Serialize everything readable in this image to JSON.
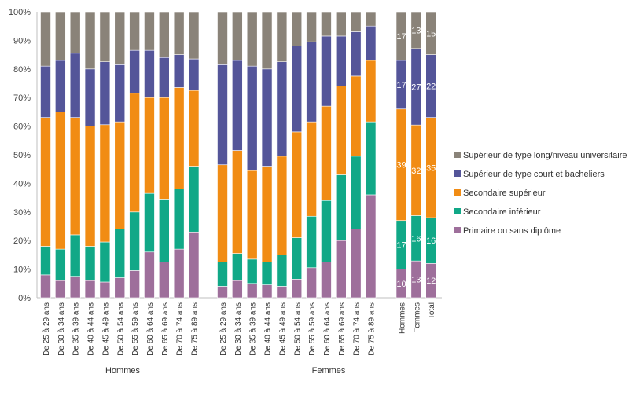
{
  "chart_data": {
    "type": "bar",
    "stacked": true,
    "percent_stacked": true,
    "ylim": [
      0,
      100
    ],
    "y_ticks": [
      "0%",
      "10%",
      "20%",
      "30%",
      "40%",
      "50%",
      "60%",
      "70%",
      "80%",
      "90%",
      "100%"
    ],
    "grid": false,
    "legend_position": "right",
    "series": [
      {
        "name": "Primaire ou sans diplôme",
        "color": "#9E6F9B"
      },
      {
        "name": "Secondaire inférieur",
        "color": "#11A887"
      },
      {
        "name": "Secondaire supérieur",
        "color": "#F18C14"
      },
      {
        "name": "Supérieur de type court et bacheliers",
        "color": "#545599"
      },
      {
        "name": "Supérieur de type long/niveau universitaire",
        "color": "#8A8379"
      }
    ],
    "legend_order": [
      4,
      3,
      2,
      1,
      0
    ],
    "groups": [
      {
        "label": "Hommes",
        "categories": [
          "De 25 à 29 ans",
          "De 30 à 34 ans",
          "De 35 à 39 ans",
          "De 40 à 44 ans",
          "De 45 à 49 ans",
          "De 50 à 54 ans",
          "De 55 à 59 ans",
          "De 60 à 64 ans",
          "De 65 à 69 ans",
          "De 70 à 74 ans",
          "De 75 à 89 ans"
        ],
        "values": [
          [
            8,
            10,
            45,
            18,
            19
          ],
          [
            6,
            11,
            48,
            18,
            17
          ],
          [
            7.5,
            14.5,
            41,
            22.5,
            14.5
          ],
          [
            6,
            12,
            42,
            20,
            20
          ],
          [
            5.5,
            14,
            41,
            22,
            17.5
          ],
          [
            7,
            17,
            37.5,
            20,
            18.5
          ],
          [
            9.5,
            20.5,
            41.5,
            15,
            13.5
          ],
          [
            16,
            20.5,
            33.5,
            16.5,
            13.5
          ],
          [
            12.5,
            22,
            35.5,
            14,
            16
          ],
          [
            17,
            21,
            35.5,
            11.5,
            15
          ],
          [
            23,
            23,
            26.5,
            11,
            16.5
          ]
        ]
      },
      {
        "label": "Femmes",
        "categories": [
          "De 25 à 29 ans",
          "De 30 à 34 ans",
          "De 35 à 39 ans",
          "De 40 à 44 ans",
          "De 45 à 49 ans",
          "De 50 à 54 ans",
          "De 55 à 59 ans",
          "De 60 à 64 ans",
          "De 65 à 69 ans",
          "De 70 à 74 ans",
          "De 75 à 89 ans"
        ],
        "values": [
          [
            4,
            8.5,
            34,
            35,
            18.5
          ],
          [
            6,
            9.5,
            36,
            31.5,
            17
          ],
          [
            5,
            8.5,
            31,
            36.5,
            19
          ],
          [
            4.5,
            8,
            33.5,
            34,
            20
          ],
          [
            4,
            11,
            34.5,
            33,
            17.5
          ],
          [
            6.5,
            14.5,
            37,
            30,
            12
          ],
          [
            10.5,
            18,
            33,
            28,
            10.5
          ],
          [
            12.5,
            21.5,
            33,
            24.5,
            8.5
          ],
          [
            20,
            23,
            31,
            17.5,
            8.5
          ],
          [
            24,
            25.5,
            28,
            15.5,
            7
          ],
          [
            36,
            25.5,
            21.5,
            12,
            5
          ]
        ]
      },
      {
        "label": "",
        "categories": [
          "Hommes",
          "Femmes",
          "Total"
        ],
        "values": [
          [
            10,
            17,
            39,
            17,
            17
          ],
          [
            13,
            16,
            32,
            27,
            13
          ],
          [
            12,
            16,
            35,
            22,
            15
          ]
        ],
        "show_value_labels": true
      }
    ]
  }
}
